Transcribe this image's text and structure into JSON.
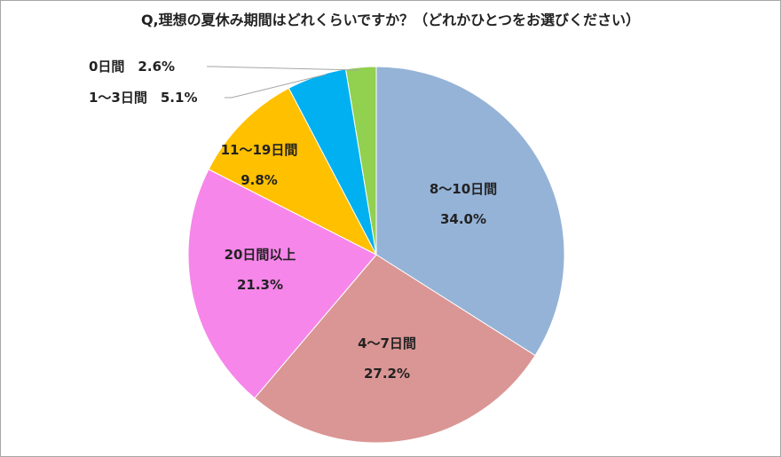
{
  "chart_data": {
    "type": "pie",
    "title": "Q,理想の夏休み期間はどれくらいですか？（どれかひとつをお選びください）",
    "slices": [
      {
        "label": "8〜10日間",
        "value": 34.0,
        "display": "34.0%",
        "color": "#95b3d7"
      },
      {
        "label": "4〜7日間",
        "value": 27.2,
        "display": "27.2%",
        "color": "#da9694"
      },
      {
        "label": "20日間以上",
        "value": 21.3,
        "display": "21.3%",
        "color": "#f686ea"
      },
      {
        "label": "11〜19日間",
        "value": 9.8,
        "display": "9.8%",
        "color": "#ffc000"
      },
      {
        "label": "1〜3日間",
        "value": 5.1,
        "display": "5.1%",
        "color": "#00b0f0"
      },
      {
        "label": "0日間",
        "value": 2.6,
        "display": "2.6%",
        "color": "#92d050"
      }
    ],
    "start_angle_deg": 0,
    "direction": "clockwise",
    "legend": "none",
    "label_style": "category and percentage"
  }
}
